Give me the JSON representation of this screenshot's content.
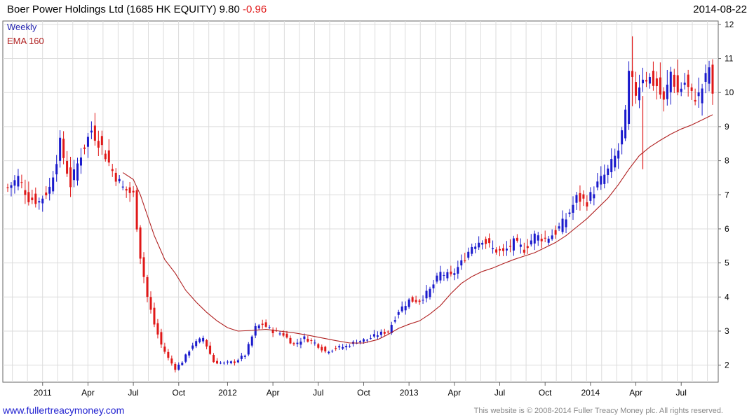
{
  "header": {
    "title": "Boer Power Holdings Ltd (1685 HK EQUITY)",
    "last": "9.80",
    "change": "-0.96",
    "date": "2014-08-22"
  },
  "footer": {
    "site": "www.fullertreacymoney.com",
    "copyright": "This website is © 2008-2014 Fuller Treacy Money plc. All rights reserved."
  },
  "colors": {
    "up": "#1a1acc",
    "down": "#e01818",
    "ema": "#b02020",
    "grid": "#dcdcdc"
  },
  "chart_data": {
    "type": "candlestick",
    "title": "Boer Power Holdings Ltd (1685 HK EQUITY) 9.80 -0.96",
    "series": [
      {
        "name": "Weekly",
        "kind": "ohlc"
      },
      {
        "name": "EMA 160",
        "kind": "line"
      }
    ],
    "y_ticks": [
      2,
      3,
      4,
      5,
      6,
      7,
      8,
      9,
      10,
      11,
      12
    ],
    "ylim": [
      1.5,
      12.1
    ],
    "x_labels": [
      {
        "label": "2011",
        "week": 10
      },
      {
        "label": "Apr",
        "week": 23
      },
      {
        "label": "Jul",
        "week": 36
      },
      {
        "label": "Oct",
        "week": 49
      },
      {
        "label": "2012",
        "week": 63
      },
      {
        "label": "Apr",
        "week": 76
      },
      {
        "label": "Jul",
        "week": 89
      },
      {
        "label": "Oct",
        "week": 102
      },
      {
        "label": "2013",
        "week": 115
      },
      {
        "label": "Apr",
        "week": 128
      },
      {
        "label": "Jul",
        "week": 141
      },
      {
        "label": "Oct",
        "week": 154
      },
      {
        "label": "2014",
        "week": 167
      },
      {
        "label": "Apr",
        "week": 180
      },
      {
        "label": "Jul",
        "week": 193
      }
    ],
    "anchors": [
      [
        0,
        7.2
      ],
      [
        3,
        7.5
      ],
      [
        6,
        6.9
      ],
      [
        9,
        6.8
      ],
      [
        12,
        7.2
      ],
      [
        15,
        8.5
      ],
      [
        18,
        7.3
      ],
      [
        21,
        8.2
      ],
      [
        24,
        8.9
      ],
      [
        27,
        8.4
      ],
      [
        30,
        7.7
      ],
      [
        33,
        7.2
      ],
      [
        36,
        7.0
      ],
      [
        38,
        5.2
      ],
      [
        40,
        4.0
      ],
      [
        42,
        3.2
      ],
      [
        44,
        2.6
      ],
      [
        46,
        2.2
      ],
      [
        48,
        1.9
      ],
      [
        50,
        2.1
      ],
      [
        53,
        2.6
      ],
      [
        56,
        2.8
      ],
      [
        59,
        2.1
      ],
      [
        62,
        2.05
      ],
      [
        65,
        2.1
      ],
      [
        68,
        2.3
      ],
      [
        71,
        3.1
      ],
      [
        73,
        3.2
      ],
      [
        76,
        3.0
      ],
      [
        79,
        2.9
      ],
      [
        82,
        2.6
      ],
      [
        85,
        2.8
      ],
      [
        88,
        2.65
      ],
      [
        91,
        2.4
      ],
      [
        94,
        2.5
      ],
      [
        97,
        2.55
      ],
      [
        100,
        2.7
      ],
      [
        103,
        2.75
      ],
      [
        106,
        2.9
      ],
      [
        109,
        3.0
      ],
      [
        112,
        3.6
      ],
      [
        115,
        3.9
      ],
      [
        118,
        3.9
      ],
      [
        121,
        4.2
      ],
      [
        124,
        4.7
      ],
      [
        127,
        4.6
      ],
      [
        130,
        5.0
      ],
      [
        133,
        5.5
      ],
      [
        136,
        5.7
      ],
      [
        139,
        5.4
      ],
      [
        142,
        5.3
      ],
      [
        145,
        5.6
      ],
      [
        148,
        5.4
      ],
      [
        151,
        5.8
      ],
      [
        154,
        5.7
      ],
      [
        157,
        5.9
      ],
      [
        160,
        6.3
      ],
      [
        163,
        6.9
      ],
      [
        166,
        6.8
      ],
      [
        169,
        7.3
      ],
      [
        172,
        7.7
      ],
      [
        175,
        8.3
      ],
      [
        177,
        9.3
      ],
      [
        178,
        10.5
      ],
      [
        180,
        10.0
      ],
      [
        182,
        10.5
      ],
      [
        184,
        10.4
      ],
      [
        186,
        10.2
      ],
      [
        188,
        9.7
      ],
      [
        190,
        10.6
      ],
      [
        192,
        10.0
      ],
      [
        194,
        10.3
      ],
      [
        196,
        9.9
      ],
      [
        198,
        9.9
      ],
      [
        200,
        10.4
      ],
      [
        201,
        10.76
      ],
      [
        202,
        9.8
      ]
    ],
    "ema": [
      [
        33,
        7.65
      ],
      [
        36,
        7.45
      ],
      [
        38,
        7.0
      ],
      [
        40,
        6.4
      ],
      [
        42,
        5.8
      ],
      [
        45,
        5.1
      ],
      [
        48,
        4.7
      ],
      [
        51,
        4.2
      ],
      [
        54,
        3.85
      ],
      [
        57,
        3.55
      ],
      [
        60,
        3.3
      ],
      [
        63,
        3.1
      ],
      [
        66,
        3.0
      ],
      [
        70,
        3.02
      ],
      [
        74,
        3.05
      ],
      [
        78,
        3.0
      ],
      [
        82,
        2.95
      ],
      [
        86,
        2.88
      ],
      [
        90,
        2.8
      ],
      [
        94,
        2.72
      ],
      [
        98,
        2.65
      ],
      [
        102,
        2.65
      ],
      [
        106,
        2.75
      ],
      [
        109,
        2.9
      ],
      [
        112,
        3.08
      ],
      [
        115,
        3.2
      ],
      [
        118,
        3.3
      ],
      [
        121,
        3.5
      ],
      [
        124,
        3.75
      ],
      [
        127,
        4.1
      ],
      [
        130,
        4.4
      ],
      [
        133,
        4.6
      ],
      [
        136,
        4.75
      ],
      [
        139,
        4.85
      ],
      [
        142,
        4.98
      ],
      [
        145,
        5.1
      ],
      [
        148,
        5.2
      ],
      [
        151,
        5.3
      ],
      [
        154,
        5.45
      ],
      [
        157,
        5.6
      ],
      [
        160,
        5.8
      ],
      [
        163,
        6.05
      ],
      [
        166,
        6.3
      ],
      [
        169,
        6.6
      ],
      [
        172,
        6.9
      ],
      [
        175,
        7.3
      ],
      [
        178,
        7.75
      ],
      [
        181,
        8.15
      ],
      [
        184,
        8.4
      ],
      [
        187,
        8.6
      ],
      [
        190,
        8.78
      ],
      [
        193,
        8.93
      ],
      [
        196,
        9.05
      ],
      [
        199,
        9.2
      ],
      [
        202,
        9.35
      ]
    ]
  }
}
